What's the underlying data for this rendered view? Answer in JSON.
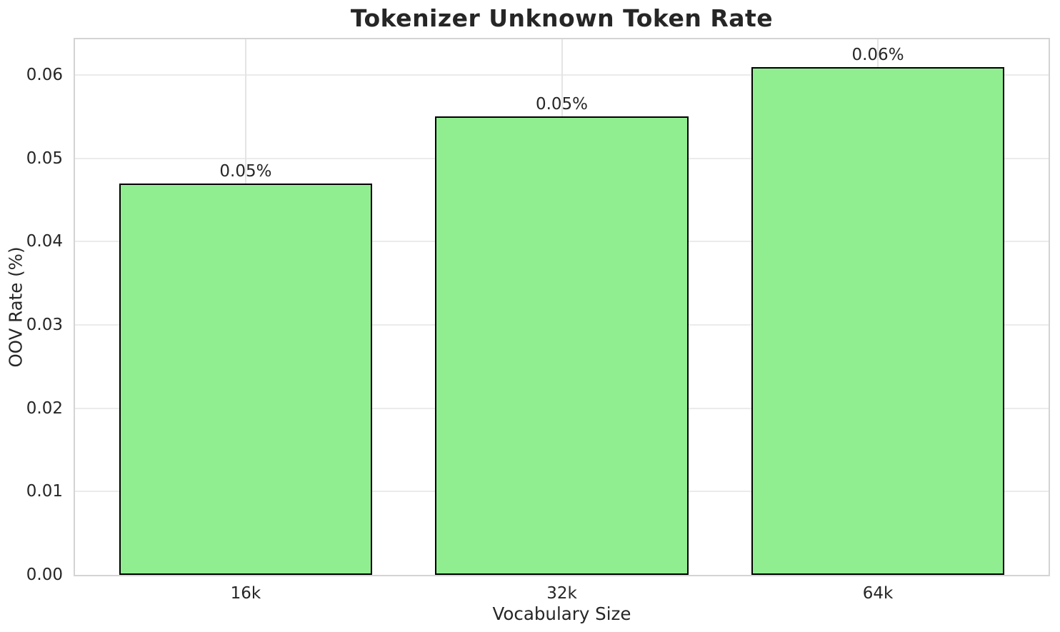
{
  "chart_data": {
    "type": "bar",
    "title": "Tokenizer Unknown Token Rate",
    "xlabel": "Vocabulary Size",
    "ylabel": "OOV Rate (%)",
    "categories": [
      "16k",
      "32k",
      "64k"
    ],
    "values": [
      0.047,
      0.055,
      0.061
    ],
    "bar_labels": [
      "0.05%",
      "0.05%",
      "0.06%"
    ],
    "yticks": [
      0,
      0.01,
      0.02,
      0.03,
      0.04,
      0.05,
      0.06
    ],
    "ytick_labels": [
      "0.00",
      "0.01",
      "0.02",
      "0.03",
      "0.04",
      "0.05",
      "0.06"
    ],
    "ylim": [
      0,
      0.0643
    ],
    "xlim": [
      -0.54,
      2.54
    ],
    "bar_width_data": 0.8,
    "grid": "both",
    "legend": "none",
    "colors": {
      "bar_fill": "#90ee90",
      "bar_edge": "#000000",
      "grid_h": "#ebebeb",
      "grid_v": "#e4e4e4",
      "spine": "#d4d4d4",
      "text": "#262626",
      "background": "#ffffff"
    }
  }
}
